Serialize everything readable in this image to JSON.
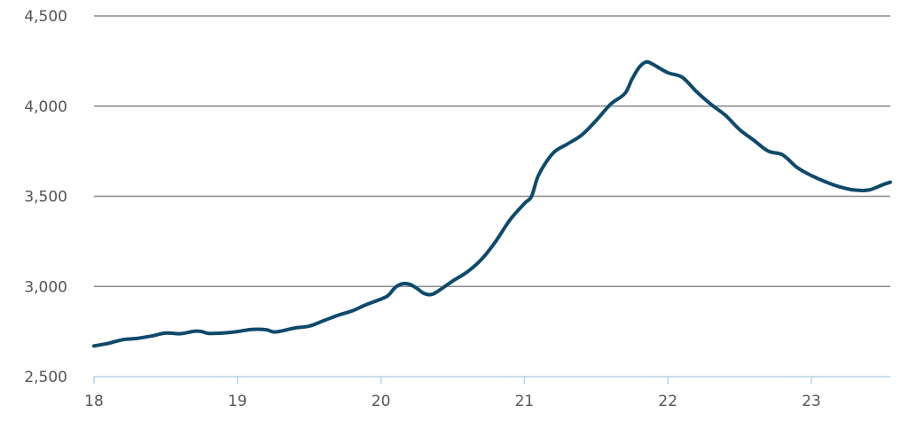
{
  "chart_data": {
    "type": "line",
    "title": "",
    "xlabel": "",
    "ylabel": "",
    "ylim": [
      2500,
      4500
    ],
    "xlim": [
      18,
      23.55
    ],
    "grid": true,
    "y_ticks": [
      2500,
      3000,
      3500,
      4000,
      4500
    ],
    "y_tick_labels": [
      "2,500",
      "3,000",
      "3,500",
      "4,000",
      "4,500"
    ],
    "x_ticks": [
      18,
      19,
      20,
      21,
      22,
      23
    ],
    "x_tick_labels": [
      "18",
      "19",
      "20",
      "21",
      "22",
      "23"
    ],
    "colors": {
      "series": "#0e4a6b",
      "grid": "#8a8a8a",
      "baseline": "#b9d3e6",
      "text": "#555555"
    },
    "series": [
      {
        "name": "",
        "points": [
          [
            18.0,
            2670
          ],
          [
            18.1,
            2685
          ],
          [
            18.2,
            2705
          ],
          [
            18.3,
            2712
          ],
          [
            18.4,
            2725
          ],
          [
            18.5,
            2742
          ],
          [
            18.6,
            2738
          ],
          [
            18.7,
            2752
          ],
          [
            18.75,
            2750
          ],
          [
            18.8,
            2740
          ],
          [
            18.9,
            2742
          ],
          [
            19.0,
            2750
          ],
          [
            19.1,
            2762
          ],
          [
            19.2,
            2760
          ],
          [
            19.25,
            2748
          ],
          [
            19.3,
            2752
          ],
          [
            19.4,
            2770
          ],
          [
            19.5,
            2780
          ],
          [
            19.6,
            2810
          ],
          [
            19.7,
            2840
          ],
          [
            19.8,
            2865
          ],
          [
            19.9,
            2900
          ],
          [
            20.0,
            2930
          ],
          [
            20.05,
            2950
          ],
          [
            20.1,
            2995
          ],
          [
            20.15,
            3015
          ],
          [
            20.2,
            3012
          ],
          [
            20.25,
            2990
          ],
          [
            20.3,
            2962
          ],
          [
            20.35,
            2955
          ],
          [
            20.4,
            2975
          ],
          [
            20.5,
            3030
          ],
          [
            20.6,
            3080
          ],
          [
            20.7,
            3150
          ],
          [
            20.8,
            3250
          ],
          [
            20.9,
            3370
          ],
          [
            21.0,
            3460
          ],
          [
            21.05,
            3500
          ],
          [
            21.1,
            3620
          ],
          [
            21.2,
            3740
          ],
          [
            21.3,
            3790
          ],
          [
            21.4,
            3840
          ],
          [
            21.5,
            3920
          ],
          [
            21.6,
            4010
          ],
          [
            21.7,
            4070
          ],
          [
            21.75,
            4150
          ],
          [
            21.8,
            4215
          ],
          [
            21.85,
            4245
          ],
          [
            21.9,
            4230
          ],
          [
            22.0,
            4185
          ],
          [
            22.1,
            4160
          ],
          [
            22.2,
            4080
          ],
          [
            22.3,
            4010
          ],
          [
            22.4,
            3950
          ],
          [
            22.5,
            3870
          ],
          [
            22.6,
            3810
          ],
          [
            22.7,
            3750
          ],
          [
            22.8,
            3730
          ],
          [
            22.9,
            3660
          ],
          [
            23.0,
            3615
          ],
          [
            23.1,
            3580
          ],
          [
            23.2,
            3552
          ],
          [
            23.3,
            3535
          ],
          [
            23.4,
            3535
          ],
          [
            23.5,
            3565
          ],
          [
            23.55,
            3578
          ]
        ]
      }
    ]
  }
}
